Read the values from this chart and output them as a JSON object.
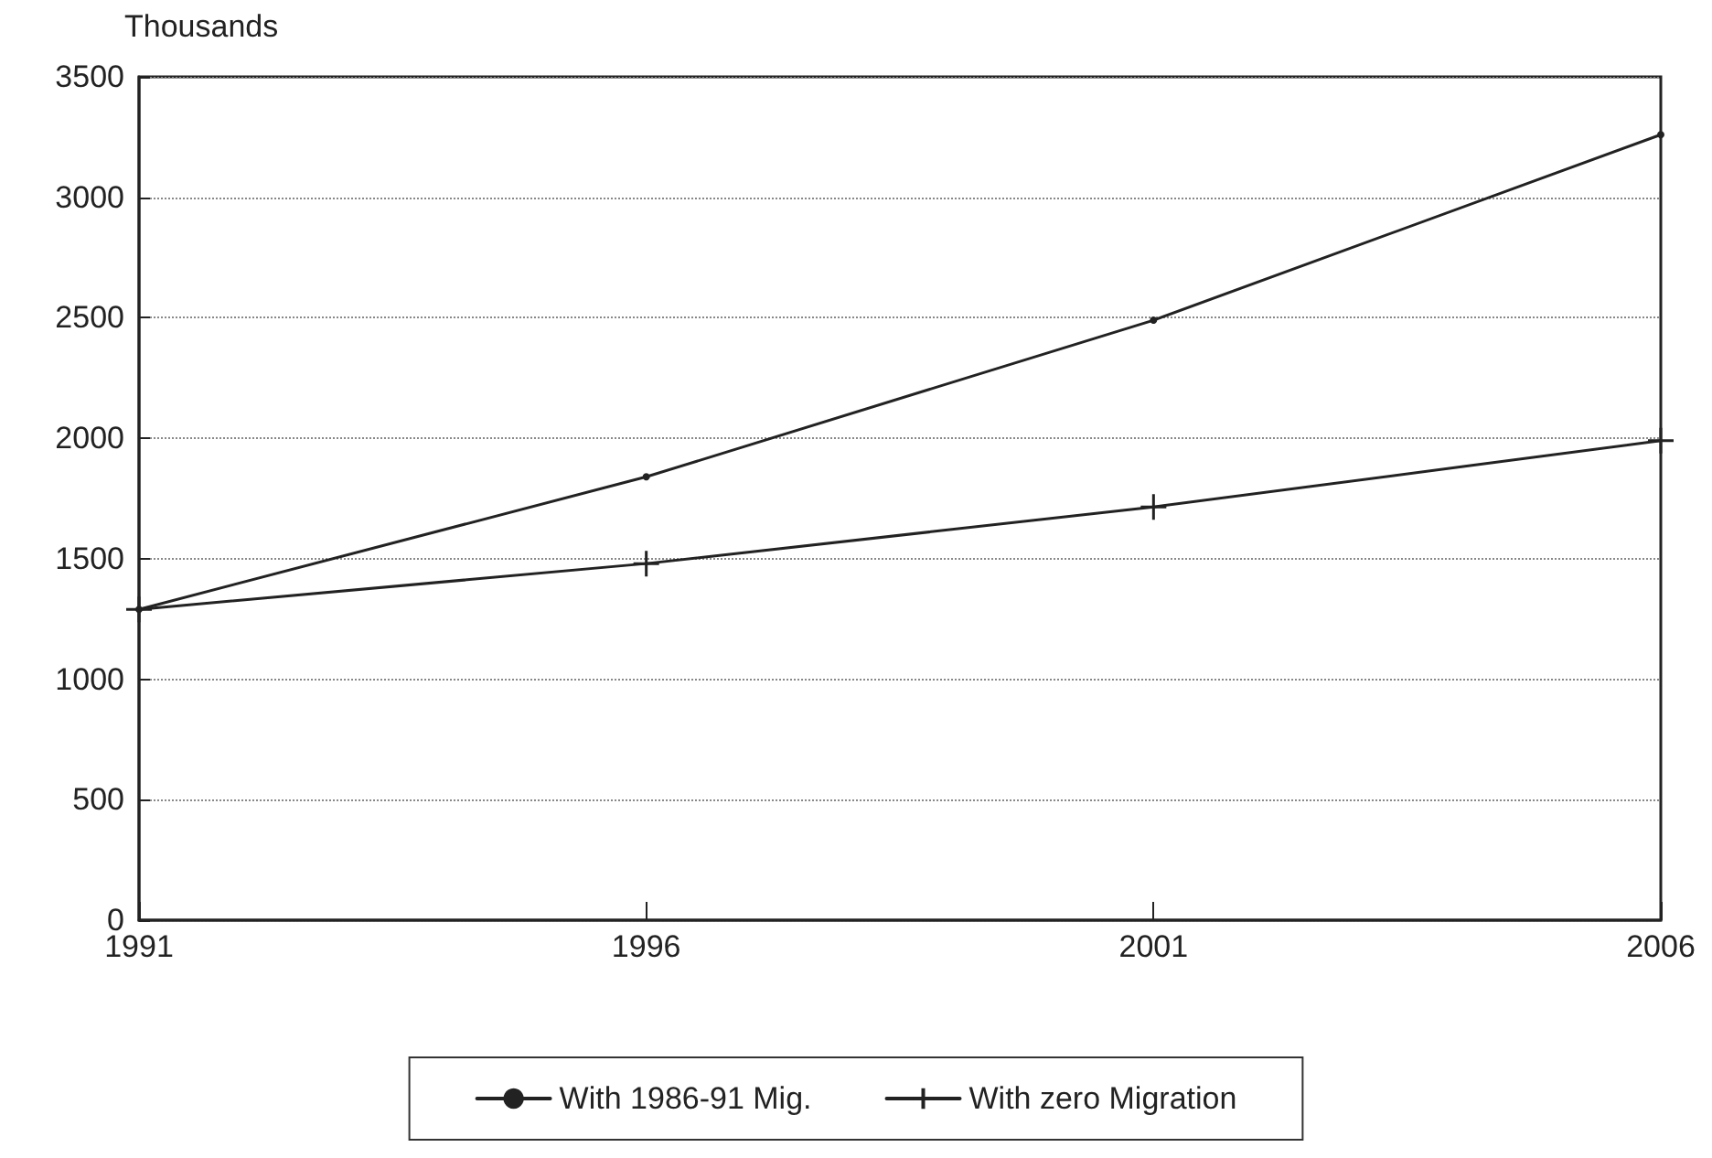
{
  "chart_data": {
    "type": "line",
    "ylabel": "Thousands",
    "categories": [
      "1991",
      "1996",
      "2001",
      "2006"
    ],
    "series": [
      {
        "name": "With 1986-91 Mig.",
        "color": "#222222",
        "marker": "circle",
        "values": [
          1290,
          1840,
          2490,
          3260
        ]
      },
      {
        "name": "With zero Migration",
        "color": "#222222",
        "marker": "cross",
        "values": [
          1290,
          1480,
          1715,
          1990
        ]
      }
    ],
    "ylim": [
      0,
      3500
    ],
    "yticks": [
      0,
      500,
      1000,
      1500,
      2000,
      2500,
      3000,
      3500
    ],
    "grid": "y",
    "legend": "bottom",
    "line_style": "solid"
  }
}
